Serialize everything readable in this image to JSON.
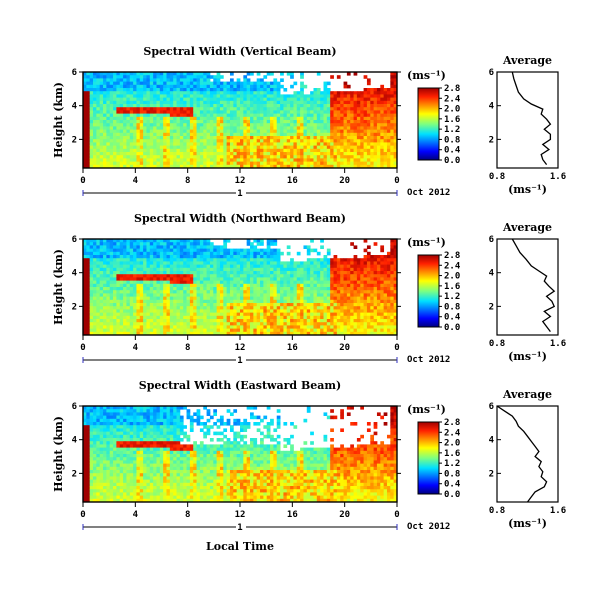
{
  "chart_data": [
    {
      "type": "heatmap",
      "title": "Spectral Width (Vertical Beam)",
      "ylabel": "Height (km)",
      "xticks": [
        "0",
        "4",
        "8",
        "12",
        "16",
        "20",
        "0"
      ],
      "yticks": [
        "6",
        "4",
        "2"
      ],
      "xlim": [
        0,
        24
      ],
      "ylim": [
        0.3,
        6
      ],
      "date_label": "1",
      "month_label": "Oct 2012",
      "colorbar": {
        "unit": "(ms⁻¹)",
        "ticks": [
          "2.8",
          "2.4",
          "2.0",
          "1.6",
          "1.2",
          "0.8",
          "0.4",
          "0.0"
        ],
        "range": [
          0,
          2.8
        ]
      },
      "average": {
        "title": "Average",
        "xlabel": "(ms⁻¹)",
        "xticks": [
          "0.8",
          "1.6"
        ],
        "yticks": [
          "6",
          "4",
          "2"
        ],
        "xlim": [
          0.8,
          1.6
        ],
        "ylim": [
          0.3,
          6
        ],
        "profile": [
          [
            6.0,
            1.0
          ],
          [
            5.6,
            1.02
          ],
          [
            5.2,
            1.05
          ],
          [
            4.8,
            1.08
          ],
          [
            4.4,
            1.15
          ],
          [
            4.1,
            1.25
          ],
          [
            3.8,
            1.4
          ],
          [
            3.5,
            1.38
          ],
          [
            3.2,
            1.45
          ],
          [
            2.9,
            1.5
          ],
          [
            2.6,
            1.42
          ],
          [
            2.3,
            1.5
          ],
          [
            2.0,
            1.5
          ],
          [
            1.7,
            1.4
          ],
          [
            1.4,
            1.48
          ],
          [
            1.1,
            1.38
          ],
          [
            0.8,
            1.4
          ],
          [
            0.5,
            1.45
          ]
        ]
      }
    },
    {
      "type": "heatmap",
      "title": "Spectral Width (Northward Beam)",
      "ylabel": "Height (km)",
      "xticks": [
        "0",
        "4",
        "8",
        "12",
        "16",
        "20",
        "0"
      ],
      "yticks": [
        "6",
        "4",
        "2"
      ],
      "xlim": [
        0,
        24
      ],
      "ylim": [
        0.3,
        6
      ],
      "date_label": "1",
      "month_label": "Oct 2012",
      "colorbar": {
        "unit": "(ms⁻¹)",
        "ticks": [
          "2.8",
          "2.4",
          "2.0",
          "1.6",
          "1.2",
          "0.8",
          "0.4",
          "0.0"
        ],
        "range": [
          0,
          2.8
        ]
      },
      "average": {
        "title": "Average",
        "xlabel": "(ms⁻¹)",
        "xticks": [
          "0.8",
          "1.6"
        ],
        "yticks": [
          "6",
          "4",
          "2"
        ],
        "xlim": [
          0.8,
          1.6
        ],
        "ylim": [
          0.3,
          6
        ],
        "profile": [
          [
            6.0,
            1.0
          ],
          [
            5.6,
            1.05
          ],
          [
            5.2,
            1.1
          ],
          [
            4.8,
            1.18
          ],
          [
            4.4,
            1.25
          ],
          [
            4.1,
            1.35
          ],
          [
            3.8,
            1.45
          ],
          [
            3.5,
            1.42
          ],
          [
            3.2,
            1.48
          ],
          [
            2.9,
            1.55
          ],
          [
            2.6,
            1.45
          ],
          [
            2.3,
            1.52
          ],
          [
            2.0,
            1.55
          ],
          [
            1.7,
            1.42
          ],
          [
            1.4,
            1.5
          ],
          [
            1.1,
            1.4
          ],
          [
            0.8,
            1.45
          ],
          [
            0.5,
            1.5
          ]
        ]
      }
    },
    {
      "type": "heatmap",
      "title": "Spectral Width (Eastward Beam)",
      "ylabel": "Height (km)",
      "xlabel": "Local Time",
      "xticks": [
        "0",
        "4",
        "8",
        "12",
        "16",
        "20",
        "0"
      ],
      "yticks": [
        "6",
        "4",
        "2"
      ],
      "xlim": [
        0,
        24
      ],
      "ylim": [
        0.3,
        6
      ],
      "date_label": "1",
      "month_label": "Oct 2012",
      "colorbar": {
        "unit": "(ms⁻¹)",
        "ticks": [
          "2.8",
          "2.4",
          "2.0",
          "1.6",
          "1.2",
          "0.8",
          "0.4",
          "0.0"
        ],
        "range": [
          0,
          2.8
        ]
      },
      "average": {
        "title": "Average",
        "xlabel": "(ms⁻¹)",
        "xticks": [
          "0.8",
          "1.6"
        ],
        "yticks": [
          "6",
          "4",
          "2"
        ],
        "xlim": [
          0.8,
          1.6
        ],
        "ylim": [
          0.3,
          6
        ],
        "profile": [
          [
            6.0,
            0.8
          ],
          [
            5.7,
            0.9
          ],
          [
            5.4,
            1.0
          ],
          [
            5.1,
            1.05
          ],
          [
            4.8,
            1.08
          ],
          [
            4.5,
            1.15
          ],
          [
            4.2,
            1.2
          ],
          [
            3.9,
            1.25
          ],
          [
            3.6,
            1.3
          ],
          [
            3.3,
            1.35
          ],
          [
            3.0,
            1.3
          ],
          [
            2.7,
            1.38
          ],
          [
            2.4,
            1.35
          ],
          [
            2.1,
            1.4
          ],
          [
            1.8,
            1.38
          ],
          [
            1.5,
            1.45
          ],
          [
            1.2,
            1.42
          ],
          [
            0.9,
            1.3
          ],
          [
            0.6,
            1.25
          ],
          [
            0.3,
            1.2
          ]
        ]
      }
    }
  ]
}
